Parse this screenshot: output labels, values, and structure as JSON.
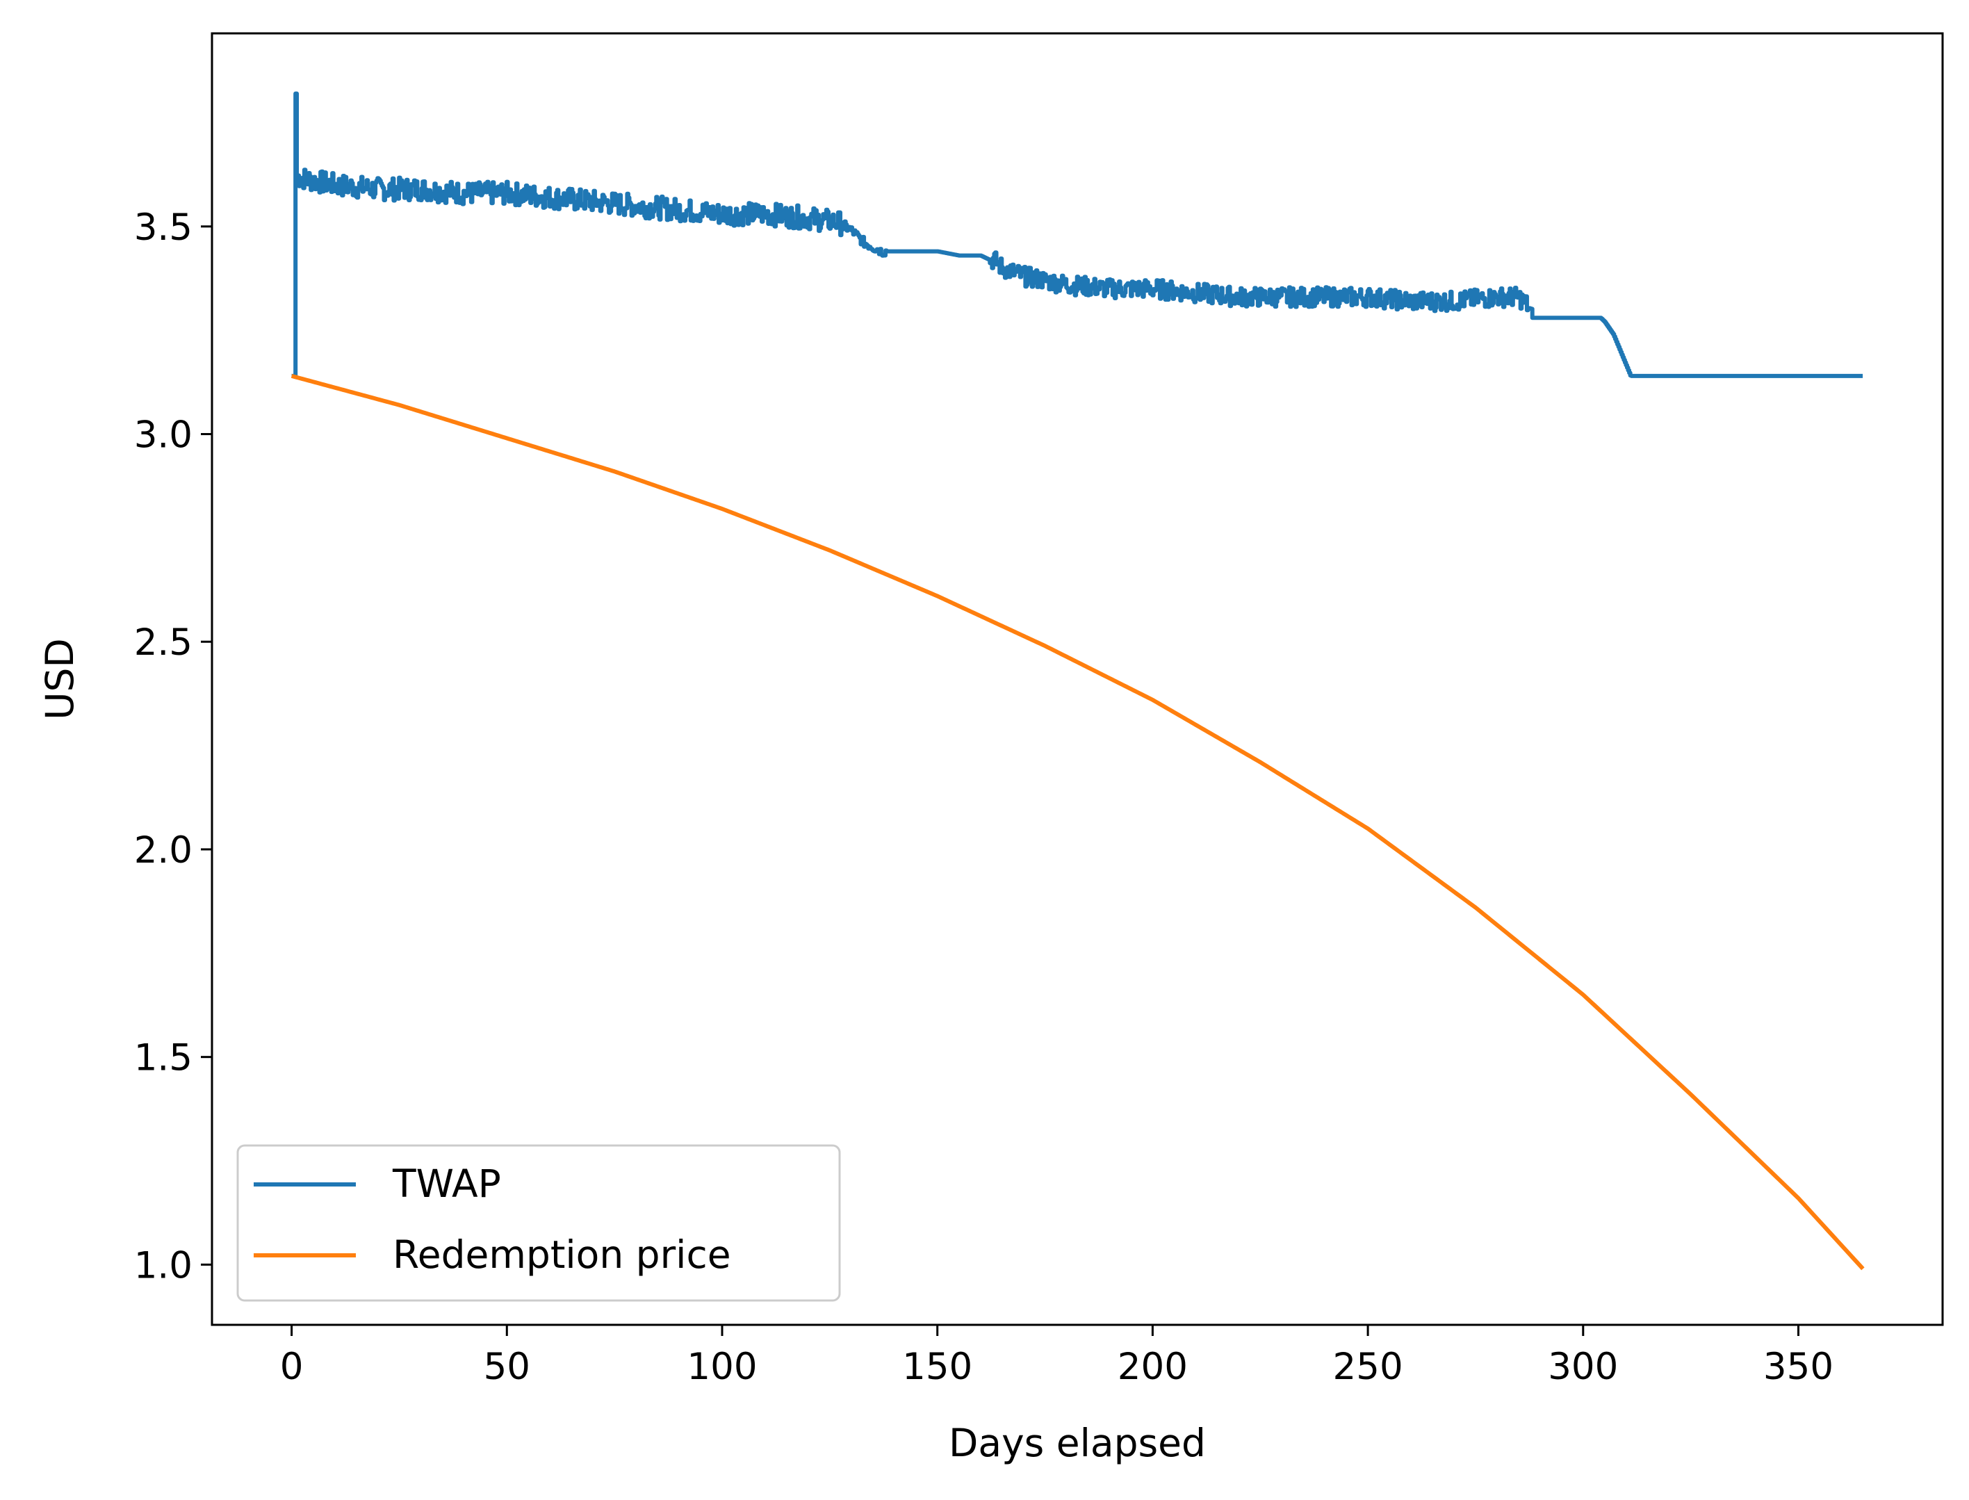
{
  "chart_data": {
    "type": "line",
    "title": "",
    "xlabel": "Days elapsed",
    "ylabel": "USD",
    "xlim": [
      -18.5,
      383.5
    ],
    "ylim": [
      0.855,
      3.965
    ],
    "x_ticks": [
      0,
      50,
      100,
      150,
      200,
      250,
      300,
      350
    ],
    "x_tick_labels": [
      "0",
      "50",
      "100",
      "150",
      "200",
      "250",
      "300",
      "350"
    ],
    "y_ticks": [
      1.0,
      1.5,
      2.0,
      2.5,
      3.0,
      3.5
    ],
    "y_tick_labels": [
      "1.0",
      "1.5",
      "2.0",
      "2.5",
      "3.0",
      "3.5"
    ],
    "grid": false,
    "legend_position": "lower-left",
    "series": [
      {
        "name": "TWAP",
        "color": "#1f77b4",
        "style": "noisy-step",
        "x": [
          0,
          0.9,
          0.9,
          1.2,
          5,
          10,
          20,
          30,
          40,
          50,
          60,
          70,
          80,
          90,
          100,
          110,
          120,
          127,
          130,
          133,
          135,
          137,
          140,
          150,
          155,
          160,
          162,
          163,
          165,
          170,
          180,
          190,
          200,
          210,
          220,
          230,
          240,
          250,
          260,
          270,
          280,
          285,
          287,
          288,
          290,
          300,
          304,
          305,
          307,
          309,
          311,
          320,
          340,
          360,
          365
        ],
        "y": [
          3.14,
          3.14,
          3.82,
          3.62,
          3.61,
          3.6,
          3.59,
          3.59,
          3.58,
          3.58,
          3.57,
          3.56,
          3.55,
          3.54,
          3.53,
          3.53,
          3.52,
          3.51,
          3.49,
          3.46,
          3.45,
          3.44,
          3.44,
          3.44,
          3.43,
          3.43,
          3.42,
          3.42,
          3.4,
          3.38,
          3.36,
          3.35,
          3.35,
          3.34,
          3.33,
          3.33,
          3.33,
          3.33,
          3.32,
          3.32,
          3.33,
          3.33,
          3.31,
          3.28,
          3.28,
          3.28,
          3.28,
          3.27,
          3.24,
          3.19,
          3.14,
          3.14,
          3.14,
          3.14,
          3.14
        ]
      },
      {
        "name": "Redemption price",
        "color": "#ff7f0e",
        "style": "line",
        "x": [
          0,
          25,
          50,
          75,
          100,
          125,
          150,
          175,
          200,
          225,
          250,
          275,
          300,
          325,
          350,
          365
        ],
        "y": [
          3.14,
          3.07,
          2.99,
          2.91,
          2.82,
          2.72,
          2.61,
          2.49,
          2.36,
          2.21,
          2.05,
          1.86,
          1.65,
          1.41,
          1.16,
          0.99
        ]
      }
    ]
  }
}
